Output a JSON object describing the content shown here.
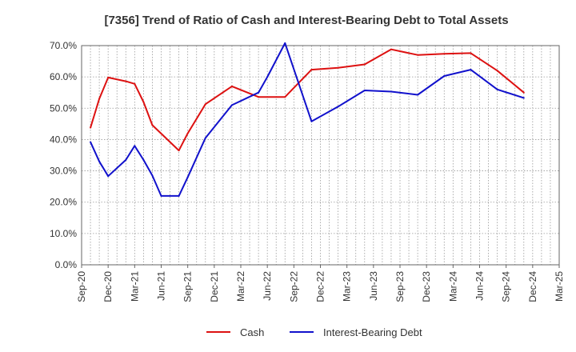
{
  "chart_data": {
    "type": "line",
    "title": "[7356]  Trend of Ratio of Cash and Interest-Bearing Debt to Total Assets",
    "xlabel": "",
    "ylabel": "",
    "ylim": [
      0,
      70
    ],
    "y_ticks": [
      0,
      10,
      20,
      30,
      40,
      50,
      60,
      70
    ],
    "y_tick_labels": [
      "0.0%",
      "10.0%",
      "20.0%",
      "30.0%",
      "40.0%",
      "50.0%",
      "60.0%",
      "70.0%"
    ],
    "x_ticks": [
      "Sep-20",
      "Dec-20",
      "Mar-21",
      "Jun-21",
      "Sep-21",
      "Dec-21",
      "Mar-22",
      "Jun-22",
      "Sep-22",
      "Dec-22",
      "Mar-23",
      "Jun-23",
      "Sep-23",
      "Dec-23",
      "Mar-24",
      "Jun-24",
      "Sep-24",
      "Dec-24",
      "Mar-25"
    ],
    "x_range_months": [
      0,
      54
    ],
    "grid": true,
    "legend_position": "bottom",
    "series": [
      {
        "name": "Cash",
        "color": "#dd1111",
        "points": [
          [
            1,
            43.8
          ],
          [
            2,
            53.0
          ],
          [
            3,
            59.8
          ],
          [
            5,
            58.6
          ],
          [
            6,
            57.8
          ],
          [
            7,
            52.0
          ],
          [
            8,
            44.6
          ],
          [
            11,
            36.5
          ],
          [
            12,
            42.0
          ],
          [
            14,
            51.3
          ],
          [
            17,
            57.0
          ],
          [
            20,
            53.6
          ],
          [
            23,
            53.6
          ],
          [
            26,
            62.3
          ],
          [
            29,
            62.9
          ],
          [
            32,
            64.0
          ],
          [
            35,
            68.8
          ],
          [
            38,
            67.0
          ],
          [
            41,
            67.4
          ],
          [
            44,
            67.6
          ],
          [
            47,
            62.0
          ],
          [
            50,
            55.0
          ]
        ]
      },
      {
        "name": "Interest-Bearing Debt",
        "color": "#1111cc",
        "points": [
          [
            1,
            39.2
          ],
          [
            2,
            33.0
          ],
          [
            3,
            28.3
          ],
          [
            5,
            33.5
          ],
          [
            6,
            38.0
          ],
          [
            7,
            33.5
          ],
          [
            8,
            28.5
          ],
          [
            9,
            22.0
          ],
          [
            11,
            22.0
          ],
          [
            12,
            28.0
          ],
          [
            14,
            40.5
          ],
          [
            17,
            51.0
          ],
          [
            20,
            55.0
          ],
          [
            21,
            60.0
          ],
          [
            23,
            70.8
          ],
          [
            26,
            45.8
          ],
          [
            29,
            50.5
          ],
          [
            32,
            55.7
          ],
          [
            35,
            55.3
          ],
          [
            38,
            54.3
          ],
          [
            41,
            60.3
          ],
          [
            44,
            62.3
          ],
          [
            47,
            56.0
          ],
          [
            50,
            53.3
          ]
        ]
      }
    ]
  }
}
